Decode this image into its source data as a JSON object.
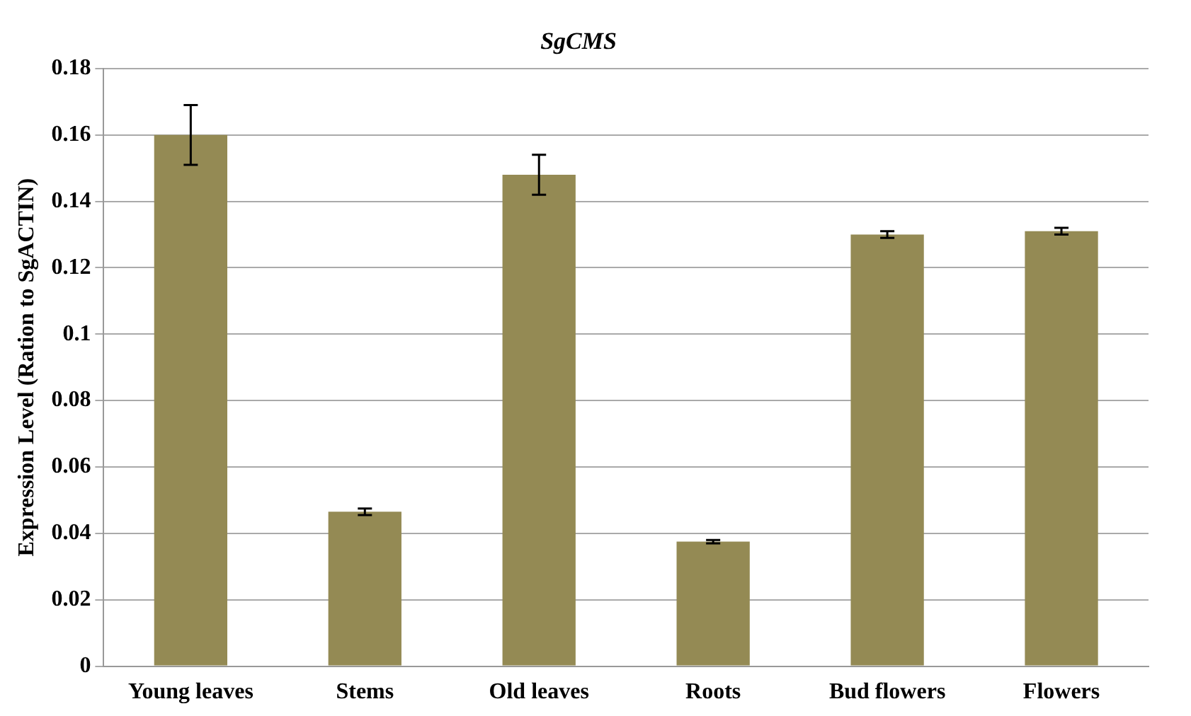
{
  "chart_data": {
    "type": "bar",
    "title": "SgCMS",
    "ylabel": "Expression Level (Ration to SgACTIN)",
    "categories": [
      "Young leaves",
      "Stems",
      "Old leaves",
      "Roots",
      "Bud flowers",
      "Flowers"
    ],
    "values": [
      0.16,
      0.0465,
      0.148,
      0.0375,
      0.13,
      0.131
    ],
    "errors": [
      0.009,
      0.001,
      0.006,
      0.0005,
      0.001,
      0.001
    ],
    "color": "#948a54",
    "ylim": [
      0,
      0.18
    ],
    "yticks": [
      0,
      0.02,
      0.04,
      0.06,
      0.08,
      0.1,
      0.12,
      0.14,
      0.16,
      0.18
    ],
    "grid": "y",
    "legend": false
  }
}
